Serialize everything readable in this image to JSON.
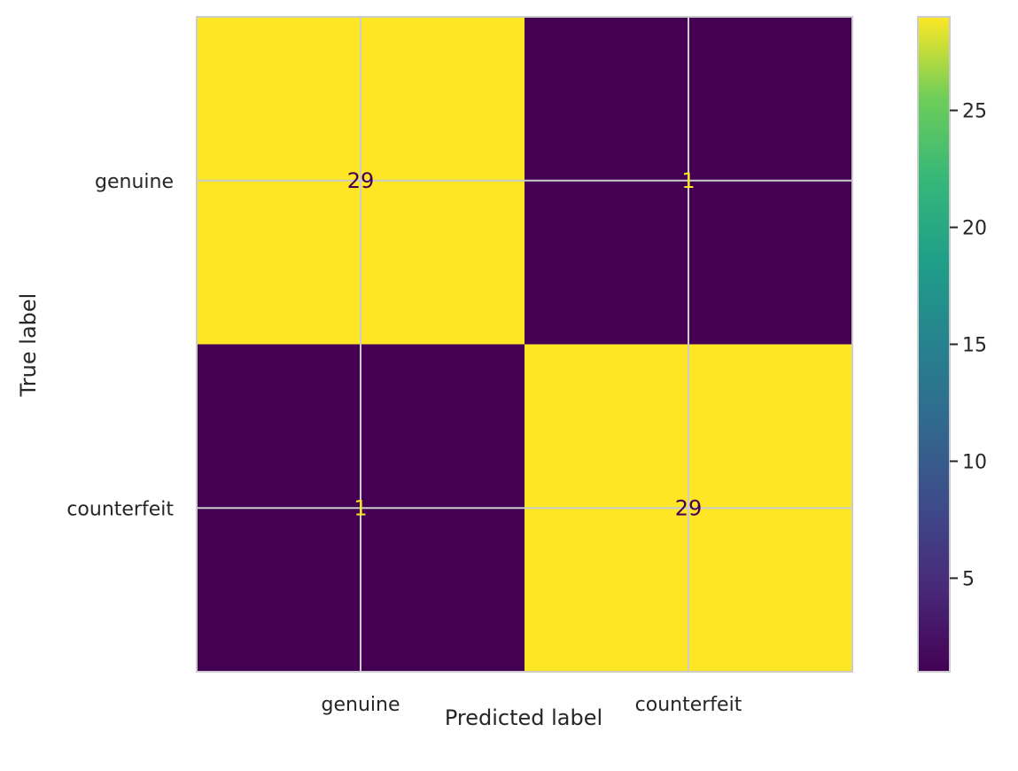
{
  "chart_data": {
    "type": "heatmap",
    "x_categories": [
      "genuine",
      "counterfeit"
    ],
    "y_categories": [
      "genuine",
      "counterfeit"
    ],
    "values": [
      [
        29,
        1
      ],
      [
        1,
        29
      ]
    ],
    "xlabel": "Predicted label",
    "ylabel": "True label",
    "colormap": "viridis",
    "value_range": [
      1,
      29
    ],
    "colorbar_ticks": [
      5,
      10,
      15,
      20,
      25
    ],
    "grid": true,
    "text_color_on_dark": "#fde725",
    "text_color_on_light": "#440154"
  }
}
